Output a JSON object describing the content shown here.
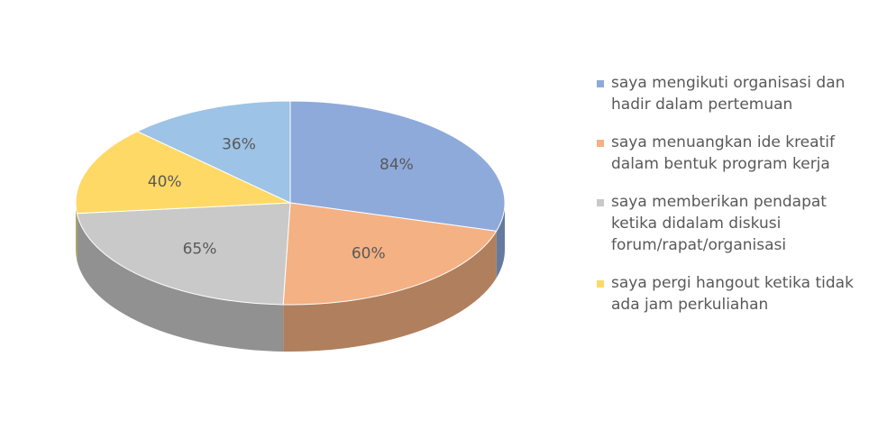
{
  "chart_data": {
    "type": "pie",
    "three_d": true,
    "categories": [
      "saya mengikuti organisasi dan hadir dalam pertemuan",
      "saya menuangkan ide kreatif dalam bentuk program kerja",
      "saya memberikan pendapat ketika didalam diskusi forum/rapat/organisasi",
      "saya pergi hangout ketika tidak ada jam perkuliahan",
      null
    ],
    "values": [
      84,
      60,
      65,
      40,
      36
    ],
    "value_labels": [
      "84%",
      "60%",
      "65%",
      "40%",
      "36%"
    ],
    "colors": [
      "#8eaadb",
      "#f4b183",
      "#c9c9c9",
      "#ffd966",
      "#9dc3e6"
    ],
    "legend": "right"
  }
}
